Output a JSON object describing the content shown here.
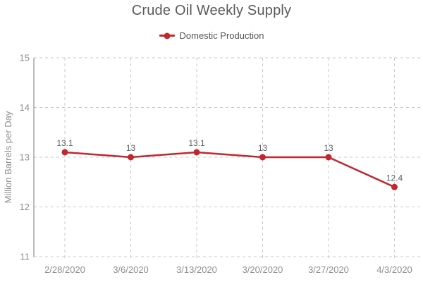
{
  "chart_data": {
    "type": "line",
    "title": "Crude Oil Weekly Supply",
    "ylabel": "Million Barrels per Day",
    "xlabel": "",
    "categories": [
      "2/28/2020",
      "3/6/2020",
      "3/13/2020",
      "3/20/2020",
      "3/27/2020",
      "4/3/2020"
    ],
    "series": [
      {
        "name": "Domestic Production",
        "values": [
          13.1,
          13,
          13.1,
          13,
          13,
          12.4
        ],
        "data_labels": [
          "13.1",
          "13",
          "13.1",
          "13",
          "13",
          "12.4"
        ],
        "color": "#c1272d"
      }
    ],
    "ylim": [
      11,
      15
    ],
    "yticks": [
      15,
      14,
      13,
      12,
      11
    ],
    "ytick_interval": 1,
    "grid": "dashed",
    "legend_position": "top-center",
    "marker": "filled-circle"
  },
  "colors": {
    "series": "#c1272d",
    "title_text": "#5a5a5a",
    "axis_tick_text": "#8f8f8f",
    "axis_title_text": "#8f8f8f",
    "data_label_text": "#606060",
    "gridline": "#c9c9c9",
    "axis_line": "#7a7a7a",
    "background": "#ffffff"
  }
}
